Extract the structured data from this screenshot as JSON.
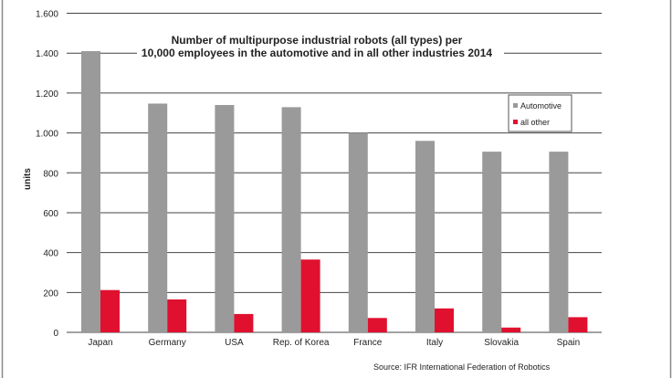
{
  "chart_data": {
    "type": "bar",
    "title": [
      "Number of multipurpose industrial robots (all types) per",
      "10,000 employees in the automotive and in all other industries 2014"
    ],
    "xlabel": "",
    "ylabel": "units",
    "ylim": [
      0,
      1600
    ],
    "yticks": [
      0,
      200,
      400,
      600,
      800,
      1000,
      1200,
      1400,
      1600
    ],
    "ytick_labels": [
      "0",
      "200",
      "400",
      "600",
      "800",
      "1.000",
      "1.200",
      "1.400",
      "1.600"
    ],
    "grid": true,
    "legend_position": "right",
    "categories": [
      "Japan",
      "Germany",
      "USA",
      "Rep. of Korea",
      "France",
      "Italy",
      "Slovakia",
      "Spain"
    ],
    "series": [
      {
        "name": "Automotive",
        "color": "#9a9a9a",
        "values": [
          1410,
          1147,
          1140,
          1129,
          1000,
          960,
          906,
          906
        ]
      },
      {
        "name": "all other",
        "color": "#e0102f",
        "values": [
          212,
          165,
          92,
          365,
          72,
          120,
          24,
          76
        ]
      }
    ],
    "source": "Source: IFR  International Federation of Robotics"
  }
}
